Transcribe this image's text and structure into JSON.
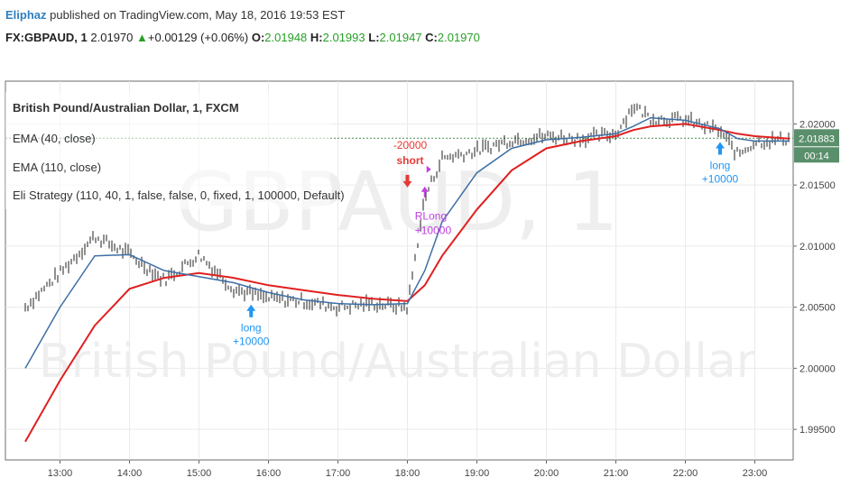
{
  "header": {
    "author": "Eliphaz",
    "published": " published on TradingView.com, May 18, 2016 19:53 EST",
    "symbol": "FX:GBPAUD, 1",
    "last": "2.01970",
    "arrow": "▲",
    "change": "+0.00129 (+0.06%)",
    "o_label": "O:",
    "o_value": "2.01948",
    "h_label": "H:",
    "h_value": "2.01993",
    "l_label": "L:",
    "l_value": "2.01947",
    "c_label": "C:",
    "c_value": "2.01970"
  },
  "legend": {
    "title": "British Pound/Australian Dollar, 1, FXCM",
    "ema40": "EMA (40, close)",
    "ema110": "EMA (110, close)",
    "strategy": "Eli Strategy (110, 40, 1, false, false, 0, fixed, 1, 100000, Default)"
  },
  "watermark": {
    "symbol": "GBPAUD, 1",
    "name": "British Pound/Australian Dollar"
  },
  "price_tag": {
    "value": "2.01883",
    "countdown": "00:14"
  },
  "colors": {
    "ema40": "#3d6fa5",
    "ema110": "#e02020",
    "candle": "#222222",
    "long": "#2196f3",
    "short": "#e53935",
    "exit": "#c040e0",
    "price_tag": "#5a8f6b"
  },
  "chart_data": {
    "type": "line",
    "x_ticks": [
      "13:00",
      "14:00",
      "15:00",
      "16:00",
      "17:00",
      "18:00",
      "19:00",
      "20:00",
      "21:00",
      "22:00",
      "23:00"
    ],
    "y_ticks": [
      "2.02000",
      "2.01500",
      "2.01000",
      "2.00500",
      "2.00000",
      "1.99500"
    ],
    "ylim": [
      1.9925,
      2.0235
    ],
    "x": [
      "12:30",
      "13:00",
      "13:30",
      "14:00",
      "14:30",
      "15:00",
      "15:30",
      "16:00",
      "16:30",
      "17:00",
      "17:30",
      "18:00",
      "18:15",
      "18:30",
      "19:00",
      "19:30",
      "20:00",
      "20:30",
      "21:00",
      "21:15",
      "21:30",
      "22:00",
      "22:30",
      "22:45",
      "23:00",
      "23:30"
    ],
    "series": [
      {
        "name": "Price",
        "values": [
          2.005,
          2.0078,
          2.0108,
          2.0093,
          2.0072,
          2.0093,
          2.0065,
          2.0057,
          2.0055,
          2.005,
          2.0053,
          2.005,
          2.014,
          2.0172,
          2.0178,
          2.0187,
          2.019,
          2.0188,
          2.0192,
          2.0215,
          2.0205,
          2.0203,
          2.0194,
          2.0175,
          2.0185,
          2.0188
        ]
      },
      {
        "name": "EMA (40, close)",
        "values": [
          2.0,
          2.005,
          2.0092,
          2.0093,
          2.008,
          2.0075,
          2.007,
          2.0062,
          2.0056,
          2.0053,
          2.0052,
          2.0053,
          2.008,
          2.012,
          2.016,
          2.018,
          2.0187,
          2.0189,
          2.0192,
          2.0198,
          2.0205,
          2.0203,
          2.0196,
          2.0188,
          2.0186,
          2.0186
        ]
      },
      {
        "name": "EMA (110, close)",
        "values": [
          1.994,
          1.999,
          2.0035,
          2.0065,
          2.0074,
          2.0078,
          2.0074,
          2.0068,
          2.0064,
          2.006,
          2.0057,
          2.0055,
          2.0068,
          2.0092,
          2.013,
          2.0162,
          2.018,
          2.0186,
          2.019,
          2.0195,
          2.0198,
          2.02,
          2.0195,
          2.0192,
          2.019,
          2.0188
        ]
      }
    ],
    "signals": [
      {
        "time": "15:45",
        "type": "long",
        "label": "long",
        "qty": "+10000"
      },
      {
        "time": "18:00",
        "type": "short",
        "label": "short",
        "qty": "-20000"
      },
      {
        "time": "18:15",
        "type": "exit",
        "label": "RLong",
        "qty": "+10000"
      },
      {
        "time": "22:30",
        "type": "long",
        "label": "long",
        "qty": "+10000"
      }
    ],
    "hline": 2.01883
  }
}
